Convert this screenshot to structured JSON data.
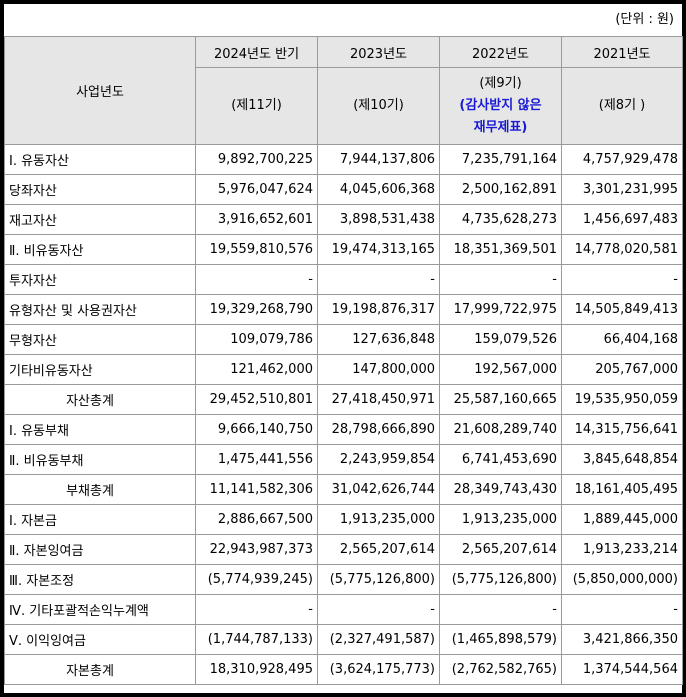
{
  "unit_label": "(단위 : 원)",
  "header": {
    "corner": "사업년도",
    "years": [
      "2024년도 반기",
      "2023년도",
      "2022년도",
      "2021년도"
    ],
    "periods": [
      "(제11기)",
      "(제10기)",
      "(제9기)",
      "(제8기 )"
    ],
    "note_lines": [
      "(감사받지 않은",
      "재무제표)"
    ]
  },
  "rows": [
    {
      "label": "Ⅰ. 유동자산",
      "total": false,
      "values": [
        "9,892,700,225",
        "7,944,137,806",
        "7,235,791,164",
        "4,757,929,478"
      ]
    },
    {
      "label": "당좌자산",
      "total": false,
      "values": [
        "5,976,047,624",
        "4,045,606,368",
        "2,500,162,891",
        "3,301,231,995"
      ]
    },
    {
      "label": "재고자산",
      "total": false,
      "values": [
        "3,916,652,601",
        "3,898,531,438",
        "4,735,628,273",
        "1,456,697,483"
      ]
    },
    {
      "label": "Ⅱ. 비유동자산",
      "total": false,
      "values": [
        "19,559,810,576",
        "19,474,313,165",
        "18,351,369,501",
        "14,778,020,581"
      ]
    },
    {
      "label": "투자자산",
      "total": false,
      "values": [
        "-",
        "-",
        "-",
        "-"
      ]
    },
    {
      "label": "유형자산 및 사용권자산",
      "total": false,
      "values": [
        "19,329,268,790",
        "19,198,876,317",
        "17,999,722,975",
        "14,505,849,413"
      ]
    },
    {
      "label": "무형자산",
      "total": false,
      "values": [
        "109,079,786",
        "127,636,848",
        "159,079,526",
        "66,404,168"
      ]
    },
    {
      "label": "기타비유동자산",
      "total": false,
      "values": [
        "121,462,000",
        "147,800,000",
        "192,567,000",
        "205,767,000"
      ]
    },
    {
      "label": "자산총계",
      "total": true,
      "values": [
        "29,452,510,801",
        "27,418,450,971",
        "25,587,160,665",
        "19,535,950,059"
      ]
    },
    {
      "label": "Ⅰ. 유동부채",
      "total": false,
      "values": [
        "9,666,140,750",
        "28,798,666,890",
        "21,608,289,740",
        "14,315,756,641"
      ]
    },
    {
      "label": "Ⅱ. 비유동부채",
      "total": false,
      "values": [
        "1,475,441,556",
        "2,243,959,854",
        "6,741,453,690",
        "3,845,648,854"
      ]
    },
    {
      "label": "부채총계",
      "total": true,
      "values": [
        "11,141,582,306",
        "31,042,626,744",
        "28,349,743,430",
        "18,161,405,495"
      ]
    },
    {
      "label": "Ⅰ. 자본금",
      "total": false,
      "values": [
        "2,886,667,500",
        "1,913,235,000",
        "1,913,235,000",
        "1,889,445,000"
      ]
    },
    {
      "label": "Ⅱ. 자본잉여금",
      "total": false,
      "values": [
        "22,943,987,373",
        "2,565,207,614",
        "2,565,207,614",
        "1,913,233,214"
      ]
    },
    {
      "label": "Ⅲ. 자본조정",
      "total": false,
      "values": [
        "(5,774,939,245)",
        "(5,775,126,800)",
        "(5,775,126,800)",
        "(5,850,000,000)"
      ]
    },
    {
      "label": "Ⅳ. 기타포괄적손익누계액",
      "total": false,
      "values": [
        "-",
        "-",
        "-",
        "-"
      ]
    },
    {
      "label": "Ⅴ. 이익잉여금",
      "total": false,
      "values": [
        "(1,744,787,133)",
        "(2,327,491,587)",
        "(1,465,898,579)",
        "3,421,866,350"
      ]
    },
    {
      "label": "자본총계",
      "total": true,
      "values": [
        "18,310,928,495",
        "(3,624,175,773)",
        "(2,762,582,765)",
        "1,374,544,564"
      ]
    }
  ]
}
